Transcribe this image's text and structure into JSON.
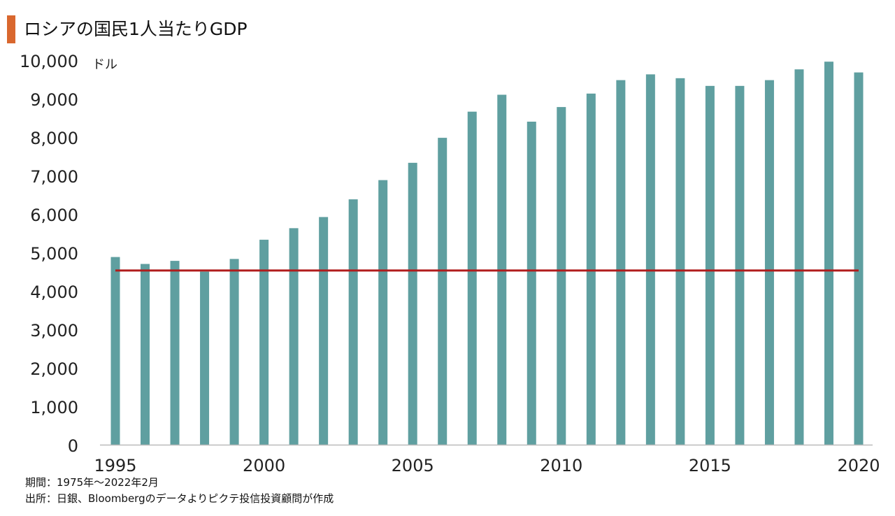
{
  "title": "ロシアの国民1人当たりGDP",
  "colors": {
    "title_accent": "#d9672e",
    "bar": "#5f9fa0",
    "reference_line": "#b01c1c",
    "axis": "#bbbbbb"
  },
  "notes": {
    "period": "期間：1975年～2022年2月",
    "source": "出所：日銀、Bloombergのデータよりピクテ投信投資顧問が作成"
  },
  "chart_data": {
    "type": "bar",
    "title": "ロシアの国民1人当たりGDP",
    "unit_label": "ドル",
    "categories": [
      1995,
      1996,
      1997,
      1998,
      1999,
      2000,
      2001,
      2002,
      2003,
      2004,
      2005,
      2006,
      2007,
      2008,
      2009,
      2010,
      2011,
      2012,
      2013,
      2014,
      2015,
      2016,
      2017,
      2018,
      2019,
      2020
    ],
    "values": [
      4880,
      4700,
      4780,
      4500,
      4830,
      5330,
      5630,
      5920,
      6380,
      6880,
      7330,
      7980,
      8660,
      9100,
      8400,
      8780,
      9130,
      9480,
      9630,
      9530,
      9330,
      9330,
      9480,
      9760,
      9960,
      9680
    ],
    "x_tick_labels": [
      "1995",
      "2000",
      "2005",
      "2010",
      "2015",
      "2020"
    ],
    "x_tick_years": [
      1995,
      2000,
      2005,
      2010,
      2015,
      2020
    ],
    "y_tick_labels": [
      "0",
      "1,000",
      "2,000",
      "3,000",
      "4,000",
      "5,000",
      "6,000",
      "7,000",
      "8,000",
      "9,000",
      "10,000"
    ],
    "y_ticks": [
      0,
      1000,
      2000,
      3000,
      4000,
      5000,
      6000,
      7000,
      8000,
      9000,
      10000
    ],
    "ylim": [
      0,
      10000
    ],
    "reference_line": {
      "value": 4530,
      "from": 1995,
      "to": 2020
    },
    "grid": false,
    "legend": "none"
  }
}
